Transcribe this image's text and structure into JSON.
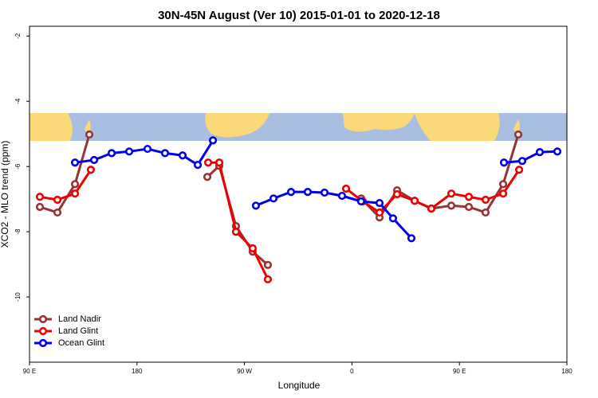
{
  "chart_data": {
    "type": "line",
    "title": "30N-45N August (Ver 10)   2015-01-01 to 2020-12-18",
    "xlabel": "Longitude",
    "ylabel": "XCO2 - MLO trend (ppm)",
    "xlim": [
      90,
      540
    ],
    "ylim": [
      -12,
      -1.7
    ],
    "xticks": [
      {
        "value": 90,
        "label": "90 E"
      },
      180,
      {
        "value": 270,
        "label": "90 W"
      },
      {
        "value": 360,
        "label": "0"
      },
      {
        "value": 450,
        "label": "90 E"
      },
      180
    ],
    "yticks": [
      -2,
      -4,
      -6,
      -8,
      -10
    ],
    "legend": "bottom-left",
    "series": [
      {
        "name": "Land Nadir",
        "color": "#993333",
        "x": [
          98.7,
          113.4,
          128.1,
          140.1,
          null,
          238.9,
          248.9,
          262.9,
          276.9,
          289.6,
          null,
          367.7,
          383.1,
          397.8,
          412.5,
          426.5,
          443.2,
          457.9,
          471.9,
          486.6,
          499.3
        ],
        "values": [
          -7.24,
          -7.41,
          -6.54,
          -5.02,
          null,
          -6.32,
          -5.98,
          -7.83,
          -8.61,
          -9.02,
          null,
          -6.98,
          -7.56,
          -6.73,
          -7.05,
          -7.29,
          -7.2,
          -7.24,
          -7.41,
          -6.54,
          -5.02
        ]
      },
      {
        "name": "Land Glint",
        "color": "#ee0000",
        "x": [
          98.7,
          113.4,
          128.1,
          141.4,
          null,
          239.6,
          248.9,
          262.9,
          276.9,
          289.6,
          null,
          355.1,
          369.1,
          383.1,
          397.8,
          412.5,
          426.5,
          443.2,
          457.9,
          471.9,
          486.6,
          500.0
        ],
        "values": [
          -6.93,
          -7.02,
          -6.83,
          -6.1,
          null,
          -5.88,
          -5.88,
          -8.0,
          -8.51,
          -9.46,
          null,
          -6.68,
          -7.07,
          -7.41,
          -6.85,
          -7.05,
          -7.29,
          -6.83,
          -6.93,
          -7.02,
          -6.83,
          -6.1
        ]
      },
      {
        "name": "Ocean Glint",
        "color": "#0000ee",
        "x": [
          128.1,
          144.1,
          158.8,
          173.5,
          188.8,
          203.5,
          218.2,
          230.9,
          243.6,
          null,
          279.6,
          294.3,
          309.0,
          323.0,
          337.0,
          351.7,
          367.7,
          383.1,
          394.4,
          409.8,
          null,
          487.3,
          502.6,
          517.3,
          532.0
        ],
        "values": [
          -5.88,
          -5.8,
          -5.59,
          -5.54,
          -5.46,
          -5.59,
          -5.66,
          -5.95,
          -5.2,
          null,
          -7.2,
          -6.98,
          -6.78,
          -6.78,
          -6.8,
          -6.9,
          -7.07,
          -7.12,
          -7.59,
          -8.2,
          null,
          -5.88,
          -5.83,
          -5.56,
          -5.54
        ]
      }
    ]
  }
}
